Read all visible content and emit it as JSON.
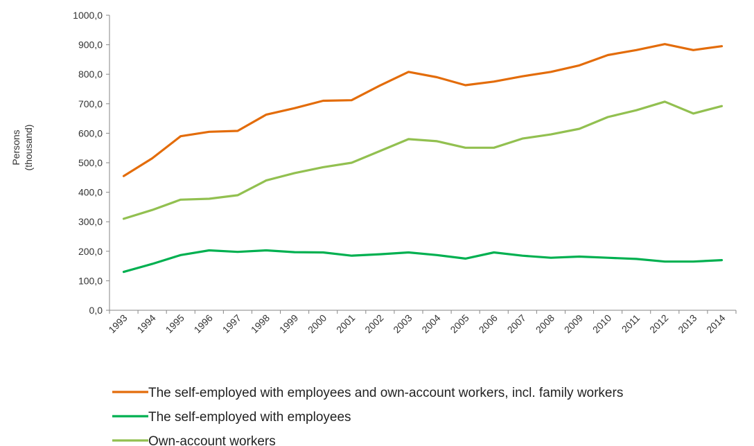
{
  "chart_data": {
    "type": "line",
    "x": [
      "1993",
      "1994",
      "1995",
      "1996",
      "1997",
      "1998",
      "1999",
      "2000",
      "2001",
      "2002",
      "2003",
      "2004",
      "2005",
      "2006",
      "2007",
      "2008",
      "2009",
      "2010",
      "2011",
      "2012",
      "2013",
      "2014"
    ],
    "series": [
      {
        "name": "The self-employed with employees and own-account workers, incl. family workers",
        "color": "#e36c0a",
        "values": [
          455,
          515,
          590,
          605,
          608,
          663,
          685,
          710,
          712,
          762,
          808,
          790,
          763,
          775,
          793,
          808,
          830,
          865,
          882,
          902,
          882,
          895
        ]
      },
      {
        "name": "The self-employed with employees",
        "color": "#00b050",
        "values": [
          130,
          157,
          187,
          203,
          198,
          203,
          197,
          196,
          185,
          190,
          196,
          187,
          175,
          196,
          185,
          178,
          182,
          178,
          174,
          165,
          165,
          170
        ]
      },
      {
        "name": "Own-account workers",
        "color": "#92c050",
        "values": [
          310,
          340,
          375,
          378,
          390,
          440,
          465,
          485,
          500,
          540,
          580,
          573,
          551,
          551,
          582,
          596,
          615,
          655,
          678,
          707,
          667,
          692
        ]
      }
    ],
    "ylabel": [
      "Persons",
      "(thousand)"
    ],
    "ylim": [
      0,
      1000
    ],
    "yticks": [
      "0,0",
      "100,0",
      "200,0",
      "300,0",
      "400,0",
      "500,0",
      "600,0",
      "700,0",
      "800,0",
      "900,0",
      "1000,0"
    ],
    "grid": false,
    "legend_position": "bottom"
  }
}
